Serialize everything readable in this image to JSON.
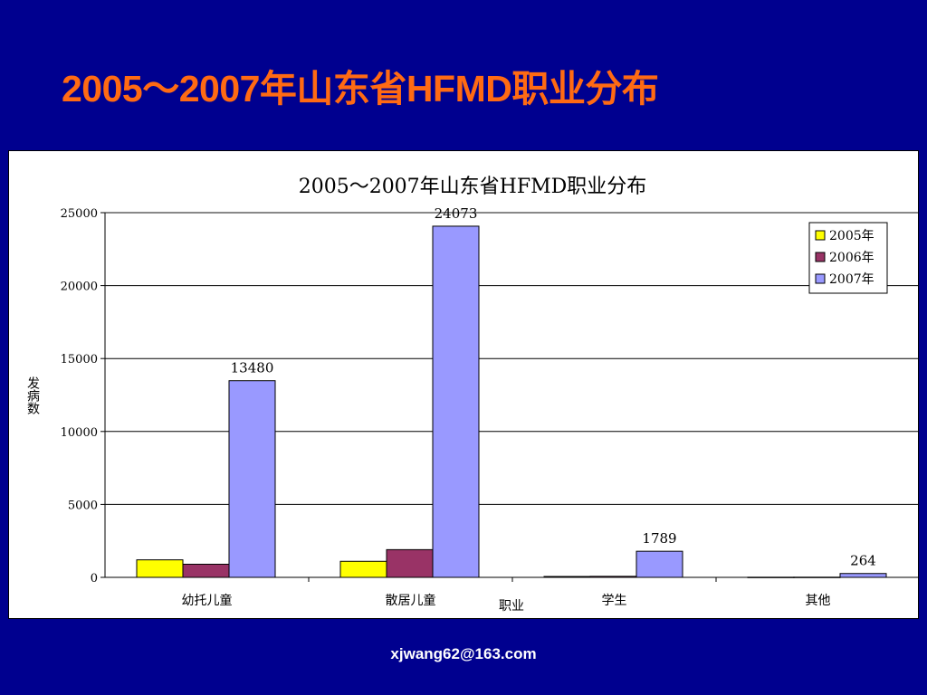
{
  "slide": {
    "title": "2005～2007年山东省HFMD职业分布",
    "footer": "xjwang62@163.com"
  },
  "colors": {
    "background": "#00008f",
    "title": "#ff6a13",
    "series": [
      "#ffff00",
      "#993366",
      "#9999ff"
    ]
  },
  "chart_data": {
    "type": "bar",
    "title": "2005～2007年山东省HFMD职业分布",
    "xlabel": "职业",
    "ylabel": "发病数",
    "categories": [
      "幼托儿童",
      "散居儿童",
      "学生",
      "其他"
    ],
    "series": [
      {
        "name": "2005年",
        "values": [
          1200,
          1100,
          60,
          10
        ]
      },
      {
        "name": "2006年",
        "values": [
          900,
          1900,
          70,
          12
        ]
      },
      {
        "name": "2007年",
        "values": [
          13480,
          24073,
          1789,
          264
        ]
      }
    ],
    "data_labels": {
      "series": "2007年",
      "labels": [
        "13480",
        "24073",
        "1789",
        "264"
      ]
    },
    "ylim": [
      0,
      25000
    ],
    "yticks": [
      0,
      5000,
      10000,
      15000,
      20000,
      25000
    ],
    "grid": true,
    "legend_position": "top-right"
  }
}
